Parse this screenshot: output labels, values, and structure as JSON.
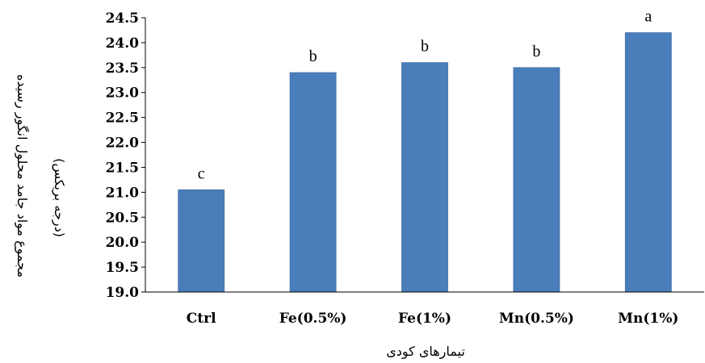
{
  "chart_data": {
    "type": "bar",
    "categories": [
      "Ctrl",
      "Fe(0.5%)",
      "Fe(1%)",
      "Mn(0.5%)",
      "Mn(1%)"
    ],
    "values": [
      21.05,
      23.4,
      23.6,
      23.5,
      24.2
    ],
    "data_labels": [
      "c",
      "b",
      "b",
      "b",
      "a"
    ],
    "xlabel": "تیمارهای کودی",
    "ylabel": "مجموع مواد جامد محلول انگور رسیده",
    "ylabel_unit": "(درجه بریکس)",
    "ylim": [
      19.0,
      24.5
    ],
    "yticks": [
      "19.0",
      "19.5",
      "20.0",
      "20.5",
      "21.0",
      "21.5",
      "22.0",
      "22.5",
      "23.0",
      "23.5",
      "24.0",
      "24.5"
    ],
    "grid": false,
    "bar_color": "#4a7ebb"
  }
}
